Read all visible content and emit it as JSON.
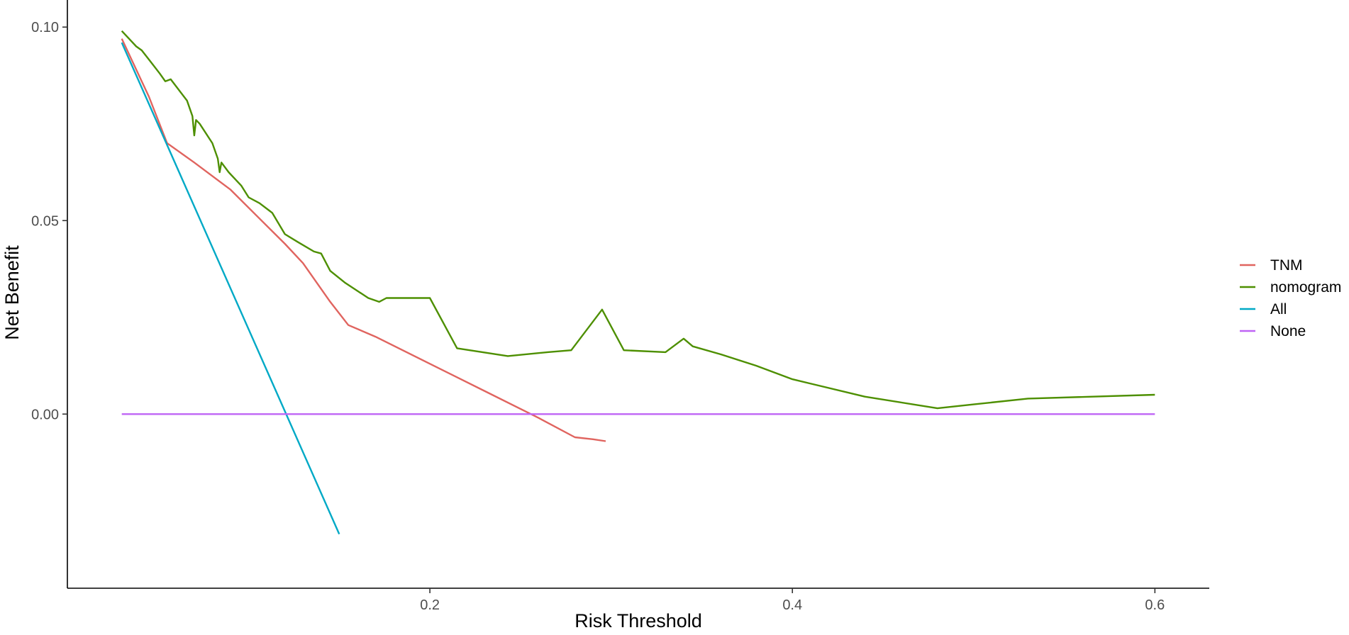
{
  "chart_data": {
    "type": "line",
    "title": "",
    "xlabel": "Risk Threshold",
    "ylabel": "Net Benefit",
    "xlim": [
      0.0,
      0.63
    ],
    "ylim": [
      -0.045,
      0.107
    ],
    "x_ticks": [
      0.2,
      0.4,
      0.6
    ],
    "x_tick_labels": [
      "0.2",
      "0.4",
      "0.6"
    ],
    "y_ticks": [
      0.0,
      0.05,
      0.1
    ],
    "y_tick_labels": [
      "0.00",
      "0.05",
      "0.10"
    ],
    "grid": false,
    "legend_position": "right",
    "series": [
      {
        "name": "TNM",
        "color": "#E0645F",
        "x": [
          0.03,
          0.045,
          0.055,
          0.07,
          0.09,
          0.105,
          0.12,
          0.13,
          0.145,
          0.155,
          0.17,
          0.2,
          0.23,
          0.26,
          0.28,
          0.29,
          0.297
        ],
        "y": [
          0.097,
          0.082,
          0.07,
          0.065,
          0.058,
          0.051,
          0.044,
          0.039,
          0.029,
          0.023,
          0.02,
          0.013,
          0.006,
          -0.001,
          -0.006,
          -0.0065,
          -0.007
        ]
      },
      {
        "name": "nomogram",
        "color": "#4D8F00",
        "x": [
          0.03,
          0.034,
          0.038,
          0.041,
          0.046,
          0.051,
          0.054,
          0.057,
          0.066,
          0.069,
          0.07,
          0.071,
          0.073,
          0.08,
          0.083,
          0.084,
          0.085,
          0.089,
          0.096,
          0.1,
          0.106,
          0.113,
          0.12,
          0.127,
          0.136,
          0.14,
          0.145,
          0.153,
          0.166,
          0.172,
          0.176,
          0.2,
          0.215,
          0.243,
          0.265,
          0.278,
          0.295,
          0.307,
          0.33,
          0.34,
          0.345,
          0.36,
          0.38,
          0.4,
          0.44,
          0.48,
          0.5,
          0.53,
          0.6
        ],
        "y": [
          0.099,
          0.097,
          0.095,
          0.094,
          0.091,
          0.088,
          0.086,
          0.0865,
          0.081,
          0.077,
          0.072,
          0.076,
          0.075,
          0.07,
          0.066,
          0.0625,
          0.065,
          0.0625,
          0.059,
          0.056,
          0.0545,
          0.052,
          0.0465,
          0.0445,
          0.042,
          0.0415,
          0.037,
          0.034,
          0.03,
          0.029,
          0.03,
          0.03,
          0.017,
          0.015,
          0.016,
          0.0165,
          0.027,
          0.0165,
          0.016,
          0.0195,
          0.0175,
          0.0155,
          0.0125,
          0.009,
          0.0045,
          0.0015,
          0.0025,
          0.004,
          0.005
        ]
      },
      {
        "name": "All",
        "color": "#00A9C6",
        "x": [
          0.03,
          0.15
        ],
        "y": [
          0.096,
          -0.031
        ]
      },
      {
        "name": "None",
        "color": "#BF64F5",
        "x": [
          0.03,
          0.6
        ],
        "y": [
          0.0,
          0.0
        ]
      }
    ]
  }
}
